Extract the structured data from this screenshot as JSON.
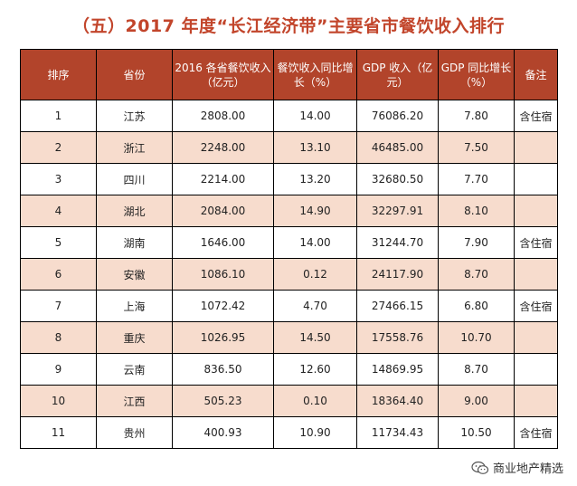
{
  "title": "（五）2017 年度“长江经济带”主要省市餐饮收入排行",
  "headers": [
    "排序",
    "省份",
    "2016 各省餐饮收入（亿元）",
    "餐饮收入同比增长（%）",
    "GDP 收入（亿元）",
    "GDP 同比增长（%）",
    "备注"
  ],
  "rows": [
    [
      "1",
      "江苏",
      "2808.00",
      "14.00",
      "76086.20",
      "7.80",
      "含住宿"
    ],
    [
      "2",
      "浙江",
      "2248.00",
      "13.10",
      "46485.00",
      "7.50",
      ""
    ],
    [
      "3",
      "四川",
      "2214.00",
      "13.20",
      "32680.50",
      "7.70",
      ""
    ],
    [
      "4",
      "湖北",
      "2084.00",
      "14.90",
      "32297.91",
      "8.10",
      ""
    ],
    [
      "5",
      "湖南",
      "1646.00",
      "14.00",
      "31244.70",
      "7.90",
      "含住宿"
    ],
    [
      "6",
      "安徽",
      "1086.10",
      "0.12",
      "24117.90",
      "8.70",
      ""
    ],
    [
      "7",
      "上海",
      "1072.42",
      "4.70",
      "27466.15",
      "6.80",
      "含住宿"
    ],
    [
      "8",
      "重庆",
      "1026.95",
      "14.50",
      "17558.76",
      "10.70",
      ""
    ],
    [
      "9",
      "云南",
      "836.50",
      "12.60",
      "14869.95",
      "8.70",
      ""
    ],
    [
      "10",
      "江西",
      "505.23",
      "0.10",
      "18364.40",
      "9.00",
      ""
    ],
    [
      "11",
      "贵州",
      "400.93",
      "10.90",
      "11734.43",
      "10.50",
      "含住宿"
    ]
  ],
  "watermark": "商业地产精选",
  "colors": {
    "title": "#c2452b",
    "header_bg": "#b2442b",
    "alt_row_bg": "#f7dccd"
  }
}
